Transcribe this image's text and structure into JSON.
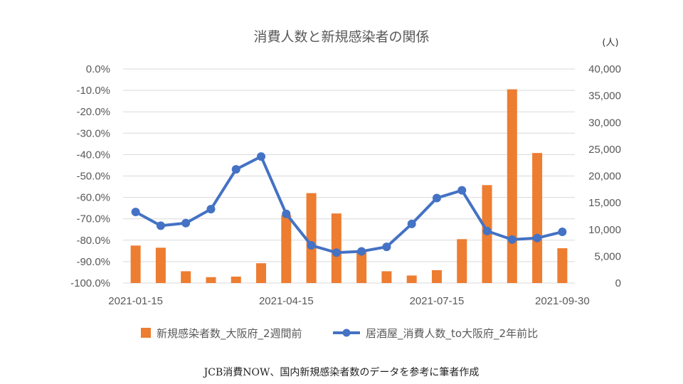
{
  "chart_data": {
    "type": "bar+line",
    "title": "消費人数と新規感染者の関係",
    "unit_label": "(人)",
    "x_tick_labels": [
      "2021-01-15",
      "2021-04-15",
      "2021-07-15",
      "2021-09-30"
    ],
    "left_axis": {
      "ticks": [
        "0.0%",
        "-10.0%",
        "-20.0%",
        "-30.0%",
        "-40.0%",
        "-50.0%",
        "-60.0%",
        "-70.0%",
        "-80.0%",
        "-90.0%",
        "-100.0%"
      ],
      "ylim": [
        -100,
        0
      ]
    },
    "right_axis": {
      "ticks": [
        "0",
        "5,000",
        "10,000",
        "15,000",
        "20,000",
        "25,000",
        "30,000",
        "35,000",
        "40,000"
      ],
      "ylim": [
        0,
        40000
      ]
    },
    "series": [
      {
        "name": "新規感染者数_大阪府_2週間前",
        "type": "bar",
        "axis": "right",
        "color": "#ED7D31",
        "values": [
          7000,
          6600,
          2200,
          1100,
          1200,
          3700,
          12700,
          16800,
          13000,
          5800,
          2200,
          1400,
          2400,
          8200,
          18300,
          36200,
          24300,
          6500
        ]
      },
      {
        "name": "居酒屋_消費人数_to大阪府_2年前比",
        "type": "line",
        "axis": "left",
        "color": "#4472C4",
        "values": [
          -66.8,
          -73.2,
          -72.0,
          -65.5,
          -46.9,
          -40.9,
          -67.7,
          -82.4,
          -85.8,
          -85.2,
          -83.1,
          -72.4,
          -60.3,
          -56.7,
          -75.7,
          -79.7,
          -79.0,
          -76.1
        ]
      }
    ],
    "legend_position": "bottom",
    "grid": true
  },
  "source_note": "JCB消費NOW、国内新規感染者数のデータを参考に筆者作成"
}
